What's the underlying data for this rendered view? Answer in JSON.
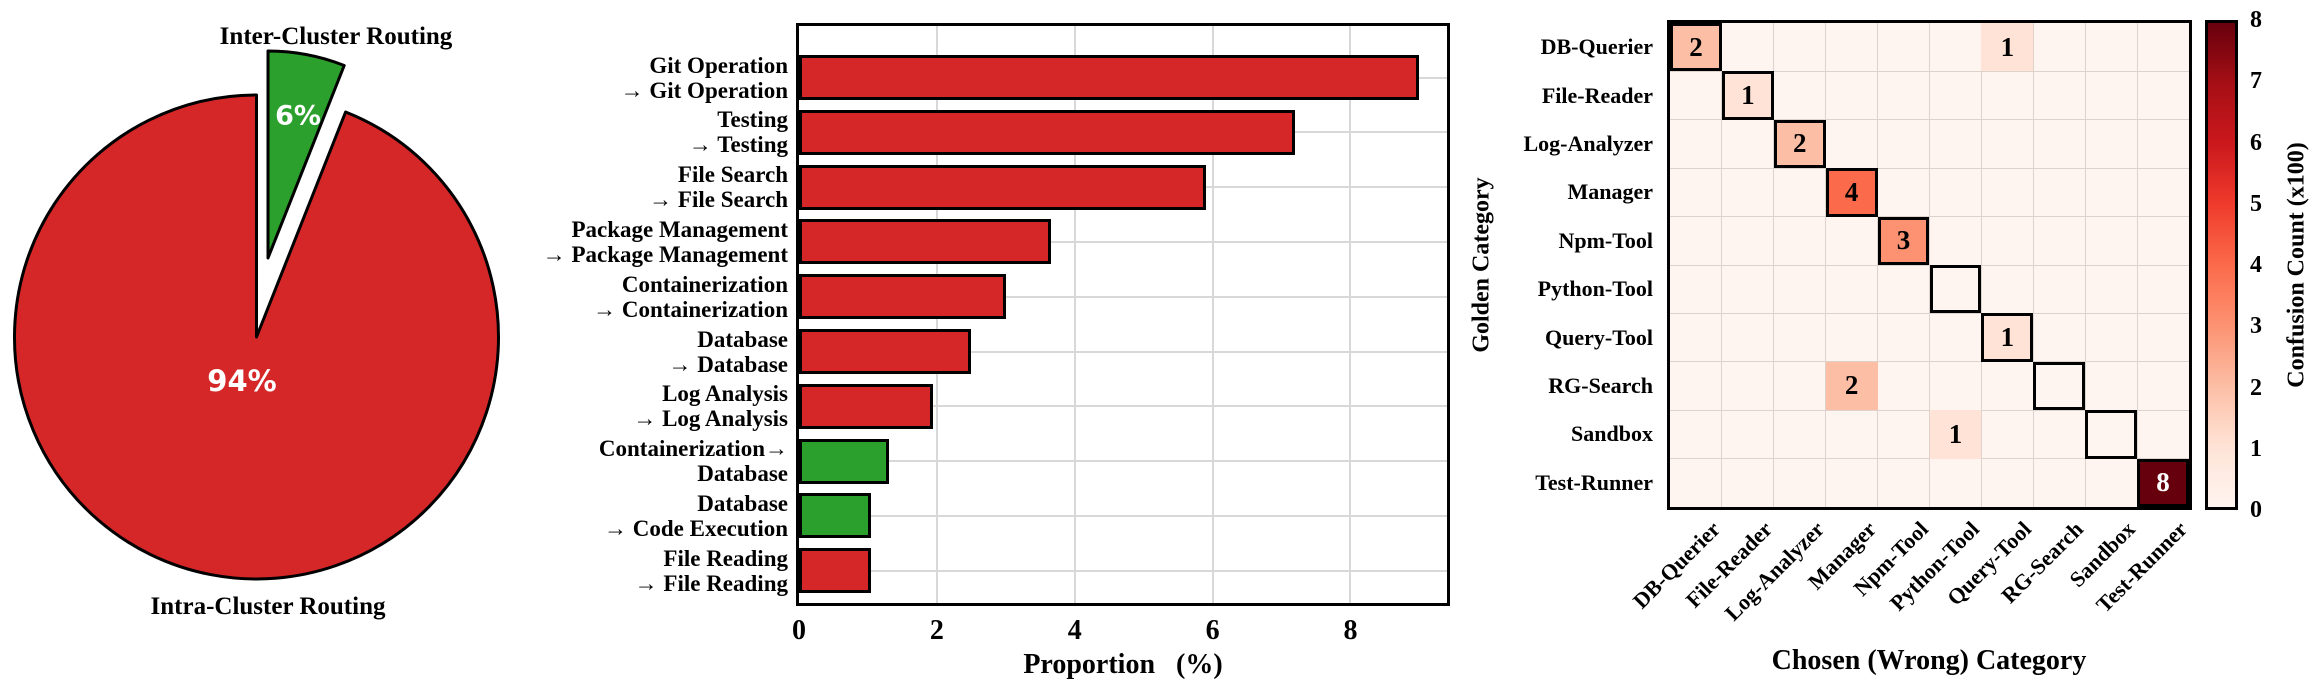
{
  "chart_data": [
    {
      "type": "pie",
      "title": "Inter-Cluster Routing",
      "bottom_label": "Intra-Cluster Routing",
      "slices": [
        {
          "label": "Inter-Cluster Routing",
          "value": 6,
          "pct_text": "6%",
          "color": "#2ca02c"
        },
        {
          "label": "Intra-Cluster Routing",
          "value": 94,
          "pct_text": "94%",
          "color": "#d62728"
        }
      ]
    },
    {
      "type": "bar",
      "orientation": "horizontal",
      "xlabel": "Proportion  (%)",
      "xticks": [
        "0",
        "2",
        "4",
        "6",
        "8"
      ],
      "xlim": [
        0,
        9.4
      ],
      "grid": true,
      "categories": [
        "Git Operation\n→ Git Operation",
        "Testing\n→ Testing",
        "File Search\n→ File Search",
        "Package Management\n→ Package Management",
        "Containerization\n→ Containerization",
        "Database\n→ Database",
        "Log Analysis\n→ Log Analysis",
        "Containerization→\nDatabase",
        "Database\n→ Code Execution",
        "File Reading\n→ File Reading"
      ],
      "values": [
        9.0,
        7.2,
        5.9,
        3.65,
        3.0,
        2.5,
        1.95,
        1.3,
        1.05,
        1.05
      ],
      "colors": [
        "#d62728",
        "#d62728",
        "#d62728",
        "#d62728",
        "#d62728",
        "#d62728",
        "#d62728",
        "#2ca02c",
        "#2ca02c",
        "#d62728"
      ]
    },
    {
      "type": "heatmap",
      "xlabel": "Chosen (Wrong) Category",
      "ylabel": "Golden Category",
      "categories": [
        "DB-Querier",
        "File-Reader",
        "Log-Analyzer",
        "Manager",
        "Npm-Tool",
        "Python-Tool",
        "Query-Tool",
        "RG-Search",
        "Sandbox",
        "Test-Runner"
      ],
      "cells": [
        {
          "row": "DB-Querier",
          "col": "DB-Querier",
          "value": 2
        },
        {
          "row": "DB-Querier",
          "col": "Query-Tool",
          "value": 1
        },
        {
          "row": "File-Reader",
          "col": "File-Reader",
          "value": 1
        },
        {
          "row": "Log-Analyzer",
          "col": "Log-Analyzer",
          "value": 2
        },
        {
          "row": "Manager",
          "col": "Manager",
          "value": 4
        },
        {
          "row": "Npm-Tool",
          "col": "Npm-Tool",
          "value": 3
        },
        {
          "row": "Query-Tool",
          "col": "Query-Tool",
          "value": 1
        },
        {
          "row": "RG-Search",
          "col": "Manager",
          "value": 2
        },
        {
          "row": "Sandbox",
          "col": "Python-Tool",
          "value": 1
        },
        {
          "row": "Test-Runner",
          "col": "Test-Runner",
          "value": 8
        }
      ],
      "diagonal_outlined": true,
      "background_value": 0,
      "colormap": "Reds",
      "colorbar": {
        "label": "Confusion Count (x100)",
        "ticks": [
          "0",
          "1",
          "2",
          "3",
          "4",
          "5",
          "6",
          "7",
          "8"
        ],
        "vmin": 0,
        "vmax": 8
      }
    }
  ]
}
